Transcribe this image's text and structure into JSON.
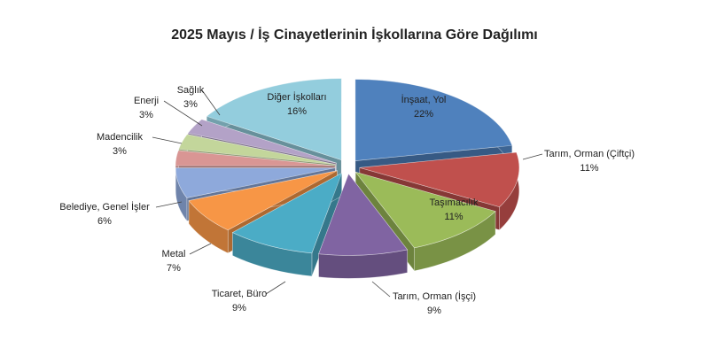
{
  "chart_data": {
    "type": "pie",
    "title": "2025 Mayıs  / İş Cinayetlerinin İşkollarına Göre Dağılımı",
    "categories": [
      "İnşaat, Yol",
      "Tarım, Orman (Çiftçi)",
      "Taşımacılık",
      "Tarım, Orman (İşçi)",
      "Ticaret, Büro",
      "Metal",
      "Belediye, Genel İşler",
      "Madencilik",
      "Enerji",
      "Sağlık",
      "Diğer İşkolları"
    ],
    "values": [
      22,
      11,
      11,
      9,
      9,
      7,
      6,
      3,
      3,
      3,
      16
    ],
    "value_labels": [
      "22%",
      "11%",
      "11%",
      "9%",
      "9%",
      "7%",
      "6%",
      "3%",
      "3%",
      "3%",
      "16%"
    ],
    "colors": [
      "#4f81bd",
      "#c0504d",
      "#9bbb59",
      "#8064a2",
      "#4bacc6",
      "#f79646",
      "#8ea9db",
      "#d99694",
      "#c3d69b",
      "#b3a2c7",
      "#93cddd"
    ]
  }
}
